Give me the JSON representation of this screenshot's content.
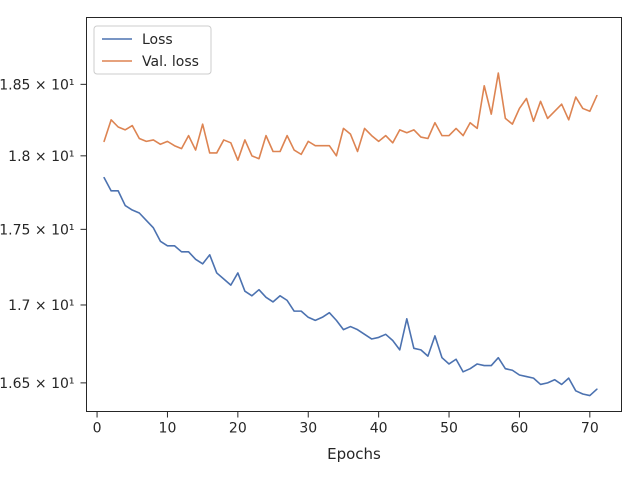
{
  "chart_data": {
    "type": "line",
    "title": "",
    "xlabel": "Epochs",
    "ylabel": "",
    "xlim": [
      -1.5,
      74.5
    ],
    "ylim": [
      16.32,
      18.98
    ],
    "x_ticks": [
      0,
      10,
      20,
      30,
      40,
      50,
      60,
      70
    ],
    "x_tick_labels": [
      "0",
      "10",
      "20",
      "30",
      "40",
      "50",
      "60",
      "70"
    ],
    "y_ticks": [
      16.5,
      17.0,
      17.5,
      18.0,
      18.5
    ],
    "y_tick_labels": [
      "1.65 × 10¹",
      "1.7 × 10¹",
      "1.75 × 10¹",
      "1.8 × 10¹",
      "1.85 × 10¹"
    ],
    "y_scale": "log",
    "grid": false,
    "legend_position": "top-left",
    "x": [
      1,
      2,
      3,
      4,
      5,
      6,
      7,
      8,
      9,
      10,
      11,
      12,
      13,
      14,
      15,
      16,
      17,
      18,
      19,
      20,
      21,
      22,
      23,
      24,
      25,
      26,
      27,
      28,
      29,
      30,
      31,
      32,
      33,
      34,
      35,
      36,
      37,
      38,
      39,
      40,
      41,
      42,
      43,
      44,
      45,
      46,
      47,
      48,
      49,
      50,
      51,
      52,
      53,
      54,
      55,
      56,
      57,
      58,
      59,
      60,
      61,
      62,
      63,
      64,
      65,
      66,
      67,
      68,
      69,
      70,
      71
    ],
    "series": [
      {
        "name": "Loss",
        "color": "#4c72b0",
        "values": [
          17.85,
          17.76,
          17.76,
          17.66,
          17.63,
          17.61,
          17.56,
          17.51,
          17.42,
          17.39,
          17.39,
          17.35,
          17.35,
          17.3,
          17.27,
          17.33,
          17.21,
          17.17,
          17.13,
          17.21,
          17.09,
          17.06,
          17.1,
          17.05,
          17.02,
          17.06,
          17.03,
          16.96,
          16.96,
          16.92,
          16.9,
          16.92,
          16.95,
          16.9,
          16.84,
          16.86,
          16.84,
          16.81,
          16.78,
          16.79,
          16.81,
          16.77,
          16.71,
          16.91,
          16.72,
          16.71,
          16.67,
          16.8,
          16.66,
          16.62,
          16.65,
          16.57,
          16.59,
          16.62,
          16.61,
          16.61,
          16.66,
          16.59,
          16.58,
          16.55,
          16.54,
          16.53,
          16.49,
          16.5,
          16.52,
          16.49,
          16.53,
          16.45,
          16.43,
          16.42,
          16.46
        ]
      },
      {
        "name": "Val. loss",
        "color": "#dd8452",
        "values": [
          18.1,
          18.25,
          18.2,
          18.18,
          18.21,
          18.12,
          18.1,
          18.11,
          18.08,
          18.1,
          18.07,
          18.05,
          18.14,
          18.04,
          18.22,
          18.02,
          18.02,
          18.11,
          18.09,
          17.97,
          18.11,
          18.0,
          17.98,
          18.14,
          18.03,
          18.03,
          18.14,
          18.04,
          18.01,
          18.1,
          18.07,
          18.07,
          18.07,
          18.0,
          18.19,
          18.15,
          18.03,
          18.19,
          18.14,
          18.1,
          18.14,
          18.09,
          18.18,
          18.16,
          18.18,
          18.13,
          18.12,
          18.23,
          18.14,
          18.14,
          18.19,
          18.14,
          18.23,
          18.19,
          18.49,
          18.29,
          18.58,
          18.26,
          18.22,
          18.33,
          18.4,
          18.24,
          18.38,
          18.26,
          18.31,
          18.36,
          18.25,
          18.41,
          18.33,
          18.31,
          18.42
        ]
      }
    ]
  }
}
